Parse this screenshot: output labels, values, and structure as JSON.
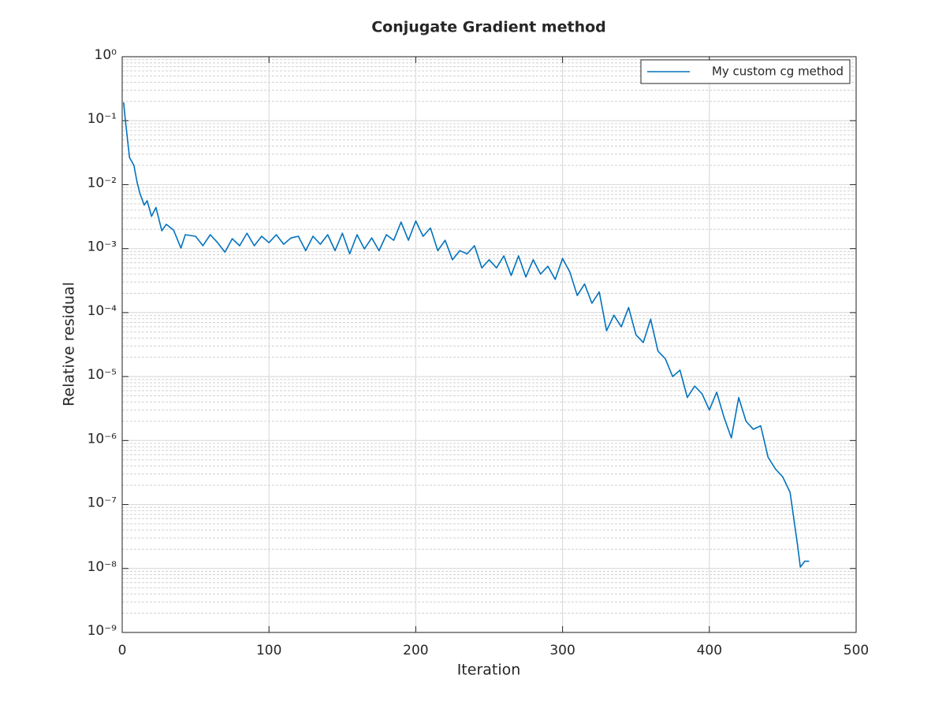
{
  "chart_data": {
    "type": "line",
    "title": "Conjugate Gradient method",
    "x_label": "Iteration",
    "y_label": "Relative residual",
    "log_y": true,
    "grid": true,
    "minor_grid": true,
    "legend_position": "top-right",
    "xlim": [
      0,
      500
    ],
    "xticks": [
      0,
      100,
      200,
      300,
      400,
      500
    ],
    "ylim": [
      1e-09,
      1
    ],
    "yticks": [
      {
        "value": 1e-09,
        "label": "10⁻⁹"
      },
      {
        "value": 1e-08,
        "label": "10⁻⁸"
      },
      {
        "value": 1e-07,
        "label": "10⁻⁷"
      },
      {
        "value": 1e-06,
        "label": "10⁻⁶"
      },
      {
        "value": 1e-05,
        "label": "10⁻⁵"
      },
      {
        "value": 0.0001,
        "label": "10⁻⁴"
      },
      {
        "value": 0.001,
        "label": "10⁻³"
      },
      {
        "value": 0.01,
        "label": "10⁻²"
      },
      {
        "value": 0.1,
        "label": "10⁻¹"
      },
      {
        "value": 1,
        "label": "10⁰"
      }
    ],
    "series": [
      {
        "name": "My custom cg method",
        "color": "#0072bd",
        "x": [
          1,
          2,
          5,
          8,
          10,
          12,
          15,
          17,
          20,
          23,
          27,
          30,
          35,
          40,
          43,
          50,
          55,
          60,
          65,
          70,
          75,
          80,
          85,
          90,
          95,
          100,
          105,
          110,
          115,
          120,
          125,
          130,
          135,
          140,
          145,
          150,
          155,
          160,
          165,
          170,
          175,
          180,
          185,
          190,
          195,
          200,
          205,
          210,
          215,
          220,
          225,
          230,
          235,
          240,
          245,
          250,
          255,
          260,
          265,
          270,
          275,
          280,
          285,
          290,
          295,
          300,
          305,
          310,
          315,
          320,
          325,
          330,
          335,
          340,
          345,
          350,
          355,
          360,
          365,
          370,
          375,
          380,
          385,
          390,
          395,
          400,
          405,
          410,
          415,
          420,
          425,
          430,
          435,
          440,
          445,
          450,
          455,
          460,
          462,
          465,
          468
        ],
        "values": [
          0.193,
          0.109,
          0.0265,
          0.02,
          0.0113,
          0.0074,
          0.0048,
          0.0056,
          0.0032,
          0.0044,
          0.0019,
          0.0024,
          0.00195,
          0.00102,
          0.00165,
          0.00156,
          0.00111,
          0.00165,
          0.00124,
          0.00088,
          0.00143,
          0.00111,
          0.00174,
          0.00111,
          0.00156,
          0.00124,
          0.00165,
          0.00117,
          0.00147,
          0.00156,
          0.00093,
          0.00156,
          0.00117,
          0.00165,
          0.00093,
          0.00174,
          0.00083,
          0.00165,
          0.00099,
          0.00147,
          0.00093,
          0.00165,
          0.00135,
          0.0026,
          0.00135,
          0.0027,
          0.00156,
          0.0021,
          0.00093,
          0.00135,
          0.00067,
          0.00093,
          0.00083,
          0.00111,
          0.0005,
          0.00067,
          0.0005,
          0.00077,
          0.00038,
          0.00077,
          0.00036,
          0.00067,
          0.0004,
          0.00053,
          0.00033,
          0.0007,
          0.00043,
          0.000185,
          0.00028,
          0.00014,
          0.00021,
          5.2e-05,
          9.1e-05,
          6e-05,
          0.00012,
          4.5e-05,
          3.4e-05,
          7.9e-05,
          2.5e-05,
          1.9e-05,
          1e-05,
          1.26e-05,
          4.7e-06,
          7.1e-06,
          5.4e-06,
          3e-06,
          5.7e-06,
          2.3e-06,
          1.1e-06,
          4.7e-06,
          2e-06,
          1.5e-06,
          1.7e-06,
          5.5e-07,
          3.6e-07,
          2.7e-07,
          1.55e-07,
          2.4e-08,
          1.05e-08,
          1.3e-08,
          1.3e-08
        ]
      }
    ]
  }
}
